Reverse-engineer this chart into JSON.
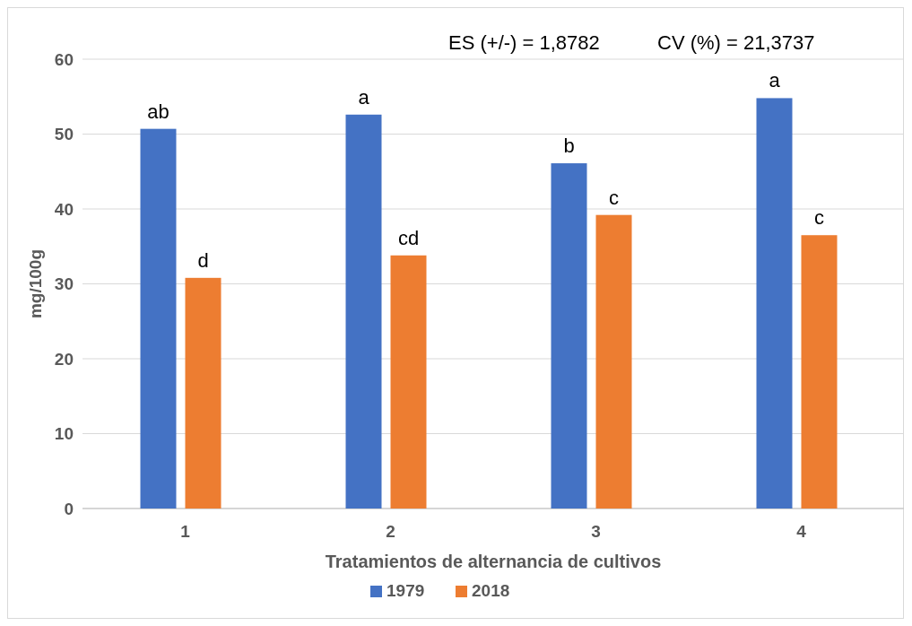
{
  "chart_data": {
    "type": "bar",
    "xlabel": "Tratamientos de alternancia de cultivos",
    "ylabel": "mg/100g",
    "categories": [
      "1",
      "2",
      "3",
      "4"
    ],
    "series": [
      {
        "name": "1979",
        "color": "#4472c4",
        "values": [
          50.7,
          52.6,
          46.1,
          54.8
        ],
        "value_labels": [
          "ab",
          "a",
          "b",
          "a"
        ]
      },
      {
        "name": "2018",
        "color": "#ed7d31",
        "values": [
          30.8,
          33.8,
          39.2,
          36.5
        ],
        "value_labels": [
          "d",
          "cd",
          "c",
          "c"
        ]
      }
    ],
    "ylim": [
      0,
      60
    ],
    "yticks": [
      0,
      10,
      20,
      30,
      40,
      50,
      60
    ],
    "grid": "y",
    "legend": "bottom",
    "annotations": [
      "ES (+/-) = 1,8782",
      "CV (%) = 21,3737"
    ]
  }
}
